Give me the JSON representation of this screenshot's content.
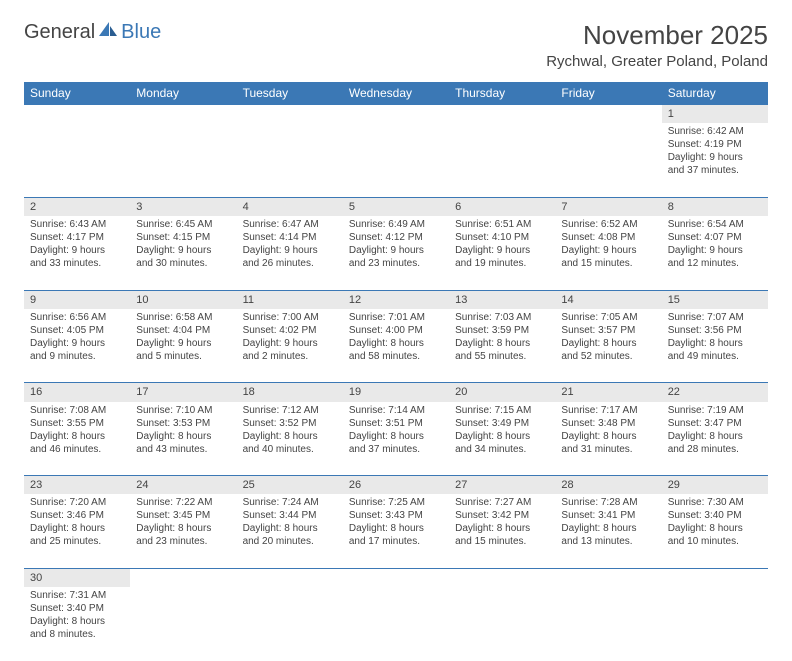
{
  "logo": {
    "part1": "General",
    "part2": "Blue"
  },
  "title": "November 2025",
  "location": "Rychwal, Greater Poland, Poland",
  "colors": {
    "header_bg": "#3b78b5",
    "daynum_bg": "#e9e9e9",
    "text": "#444444"
  },
  "days_of_week": [
    "Sunday",
    "Monday",
    "Tuesday",
    "Wednesday",
    "Thursday",
    "Friday",
    "Saturday"
  ],
  "weeks": [
    [
      null,
      null,
      null,
      null,
      null,
      null,
      {
        "n": "1",
        "sr": "6:42 AM",
        "ss": "4:19 PM",
        "dl": "9 hours and 37 minutes."
      }
    ],
    [
      {
        "n": "2",
        "sr": "6:43 AM",
        "ss": "4:17 PM",
        "dl": "9 hours and 33 minutes."
      },
      {
        "n": "3",
        "sr": "6:45 AM",
        "ss": "4:15 PM",
        "dl": "9 hours and 30 minutes."
      },
      {
        "n": "4",
        "sr": "6:47 AM",
        "ss": "4:14 PM",
        "dl": "9 hours and 26 minutes."
      },
      {
        "n": "5",
        "sr": "6:49 AM",
        "ss": "4:12 PM",
        "dl": "9 hours and 23 minutes."
      },
      {
        "n": "6",
        "sr": "6:51 AM",
        "ss": "4:10 PM",
        "dl": "9 hours and 19 minutes."
      },
      {
        "n": "7",
        "sr": "6:52 AM",
        "ss": "4:08 PM",
        "dl": "9 hours and 15 minutes."
      },
      {
        "n": "8",
        "sr": "6:54 AM",
        "ss": "4:07 PM",
        "dl": "9 hours and 12 minutes."
      }
    ],
    [
      {
        "n": "9",
        "sr": "6:56 AM",
        "ss": "4:05 PM",
        "dl": "9 hours and 9 minutes."
      },
      {
        "n": "10",
        "sr": "6:58 AM",
        "ss": "4:04 PM",
        "dl": "9 hours and 5 minutes."
      },
      {
        "n": "11",
        "sr": "7:00 AM",
        "ss": "4:02 PM",
        "dl": "9 hours and 2 minutes."
      },
      {
        "n": "12",
        "sr": "7:01 AM",
        "ss": "4:00 PM",
        "dl": "8 hours and 58 minutes."
      },
      {
        "n": "13",
        "sr": "7:03 AM",
        "ss": "3:59 PM",
        "dl": "8 hours and 55 minutes."
      },
      {
        "n": "14",
        "sr": "7:05 AM",
        "ss": "3:57 PM",
        "dl": "8 hours and 52 minutes."
      },
      {
        "n": "15",
        "sr": "7:07 AM",
        "ss": "3:56 PM",
        "dl": "8 hours and 49 minutes."
      }
    ],
    [
      {
        "n": "16",
        "sr": "7:08 AM",
        "ss": "3:55 PM",
        "dl": "8 hours and 46 minutes."
      },
      {
        "n": "17",
        "sr": "7:10 AM",
        "ss": "3:53 PM",
        "dl": "8 hours and 43 minutes."
      },
      {
        "n": "18",
        "sr": "7:12 AM",
        "ss": "3:52 PM",
        "dl": "8 hours and 40 minutes."
      },
      {
        "n": "19",
        "sr": "7:14 AM",
        "ss": "3:51 PM",
        "dl": "8 hours and 37 minutes."
      },
      {
        "n": "20",
        "sr": "7:15 AM",
        "ss": "3:49 PM",
        "dl": "8 hours and 34 minutes."
      },
      {
        "n": "21",
        "sr": "7:17 AM",
        "ss": "3:48 PM",
        "dl": "8 hours and 31 minutes."
      },
      {
        "n": "22",
        "sr": "7:19 AM",
        "ss": "3:47 PM",
        "dl": "8 hours and 28 minutes."
      }
    ],
    [
      {
        "n": "23",
        "sr": "7:20 AM",
        "ss": "3:46 PM",
        "dl": "8 hours and 25 minutes."
      },
      {
        "n": "24",
        "sr": "7:22 AM",
        "ss": "3:45 PM",
        "dl": "8 hours and 23 minutes."
      },
      {
        "n": "25",
        "sr": "7:24 AM",
        "ss": "3:44 PM",
        "dl": "8 hours and 20 minutes."
      },
      {
        "n": "26",
        "sr": "7:25 AM",
        "ss": "3:43 PM",
        "dl": "8 hours and 17 minutes."
      },
      {
        "n": "27",
        "sr": "7:27 AM",
        "ss": "3:42 PM",
        "dl": "8 hours and 15 minutes."
      },
      {
        "n": "28",
        "sr": "7:28 AM",
        "ss": "3:41 PM",
        "dl": "8 hours and 13 minutes."
      },
      {
        "n": "29",
        "sr": "7:30 AM",
        "ss": "3:40 PM",
        "dl": "8 hours and 10 minutes."
      }
    ],
    [
      {
        "n": "30",
        "sr": "7:31 AM",
        "ss": "3:40 PM",
        "dl": "8 hours and 8 minutes."
      },
      null,
      null,
      null,
      null,
      null,
      null
    ]
  ],
  "labels": {
    "sunrise": "Sunrise:",
    "sunset": "Sunset:",
    "daylight": "Daylight:"
  }
}
